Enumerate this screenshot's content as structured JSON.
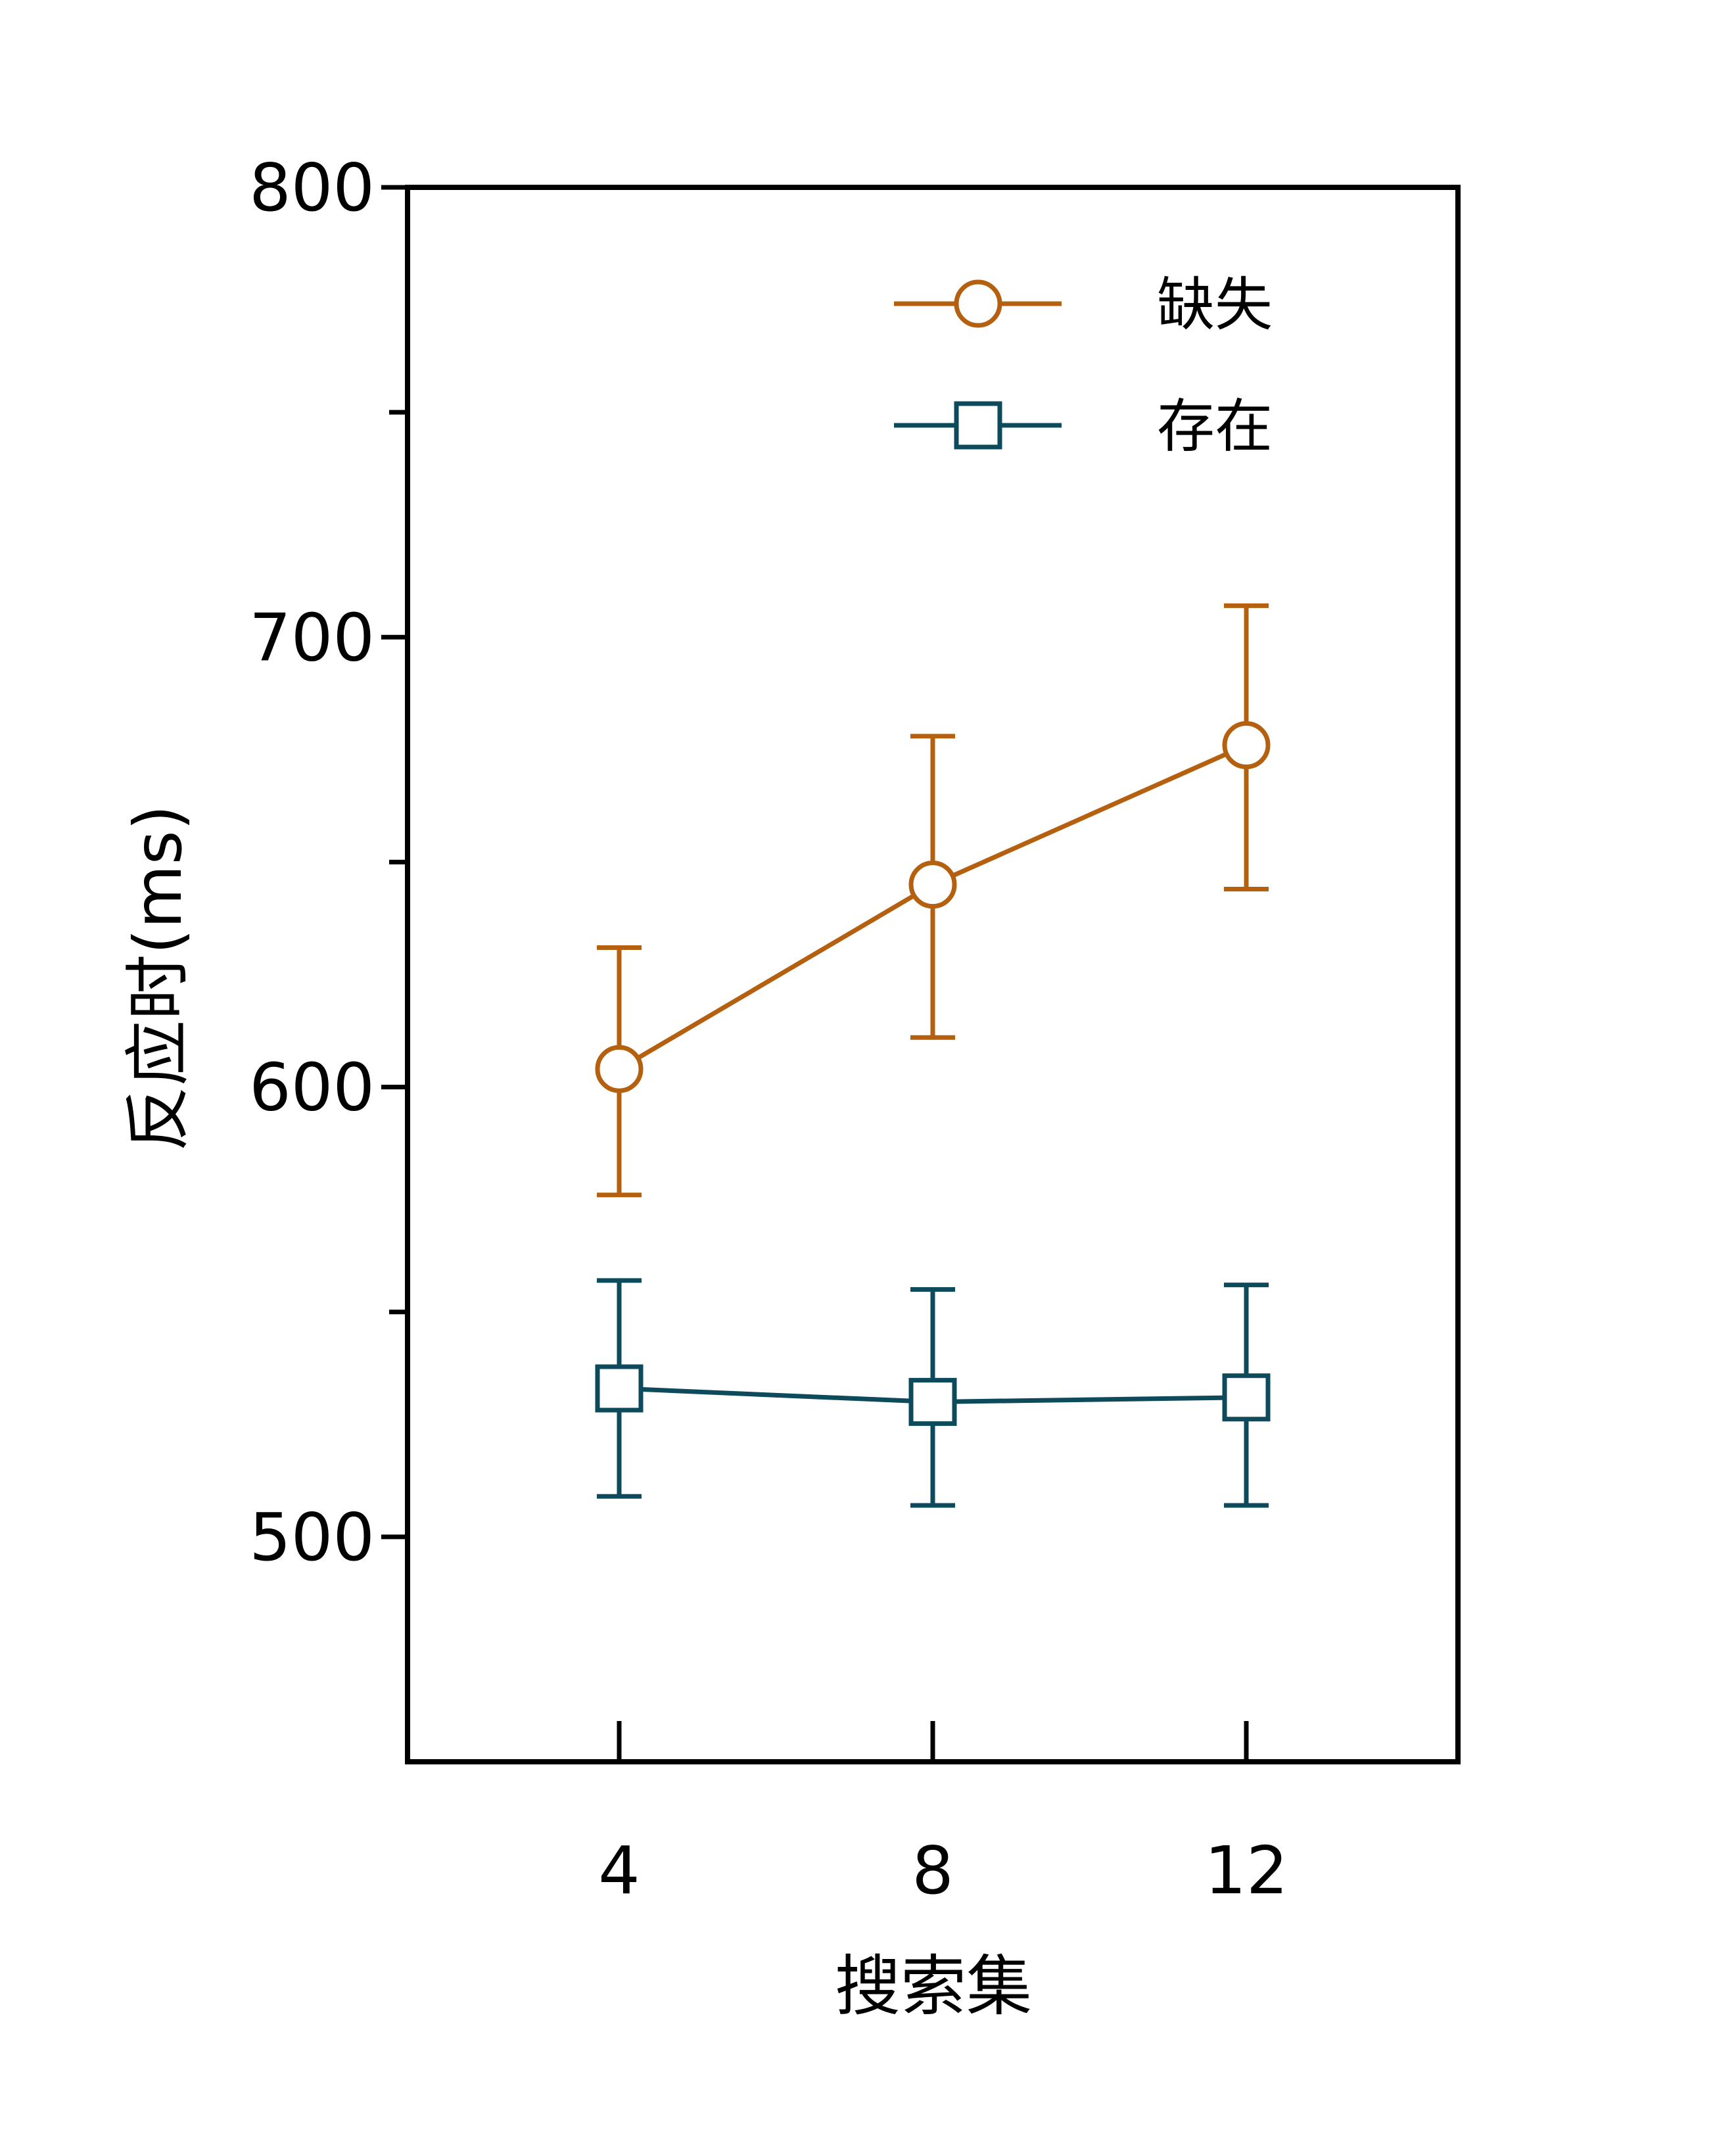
{
  "chart_data": {
    "type": "line",
    "xlabel": "搜索集",
    "ylabel": "反应时(ms)",
    "categories": [
      "4",
      "8",
      "12"
    ],
    "x": [
      4,
      8,
      12
    ],
    "xlim": [
      1.3,
      14.7
    ],
    "ylim": [
      450,
      800
    ],
    "yticks": [
      500,
      600,
      700,
      800
    ],
    "yminor_ticks": [
      550,
      650,
      750
    ],
    "grid": false,
    "legend_position": "top-right",
    "series": [
      {
        "name": "缺失",
        "color": "#b5600f",
        "marker": "circle",
        "values": [
          604,
          645,
          676
        ],
        "error_upper": [
          631,
          678,
          707
        ],
        "error_lower": [
          576,
          611,
          644
        ]
      },
      {
        "name": "存在",
        "color": "#0d4a5c",
        "marker": "square",
        "values": [
          533,
          530,
          531
        ],
        "error_upper": [
          557,
          555,
          556
        ],
        "error_lower": [
          509,
          507,
          507
        ]
      }
    ]
  }
}
